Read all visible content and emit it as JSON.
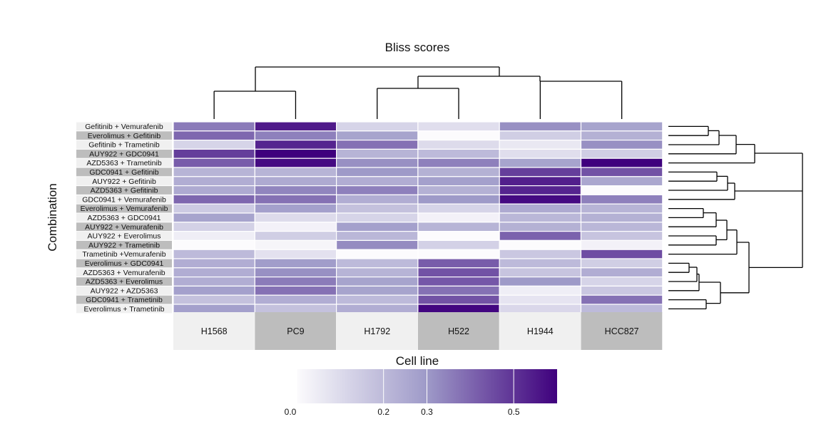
{
  "chart_data": {
    "type": "heatmap",
    "title": "Bliss scores",
    "xlabel": "Cell line",
    "ylabel": "Combination",
    "columns": [
      "H1568",
      "PC9",
      "H1792",
      "H522",
      "H1944",
      "HCC827"
    ],
    "rows": [
      "Gefitinib + Vemurafenib",
      "Everolimus + Gefitinib",
      "Gefitinib + Trametinib",
      "AUY922 + GDC0941",
      "AZD5363 + Trametinib",
      "GDC0941 + Gefitinib",
      "AUY922 + Gefitinib",
      "AZD5363 + Gefitinib",
      "GDC0941 + Vemurafenib",
      "Everolimus + Vemurafenib",
      "AZD5363 + GDC0941",
      "AUY922 + Vemurafenib",
      "AUY922 + Everolimus",
      "AUY922 + Trametinib",
      "Trametinib +Vemurafenib",
      "Everolimus + GDC0941",
      "AZD5363 + Vemurafenib",
      "AZD5363 + Everolimus",
      "AUY922 + AZD5363",
      "GDC0941 + Trametinib",
      "Everolimus + Trametinib"
    ],
    "values": [
      [
        0.36,
        0.55,
        0.12,
        0.09,
        0.32,
        0.27
      ],
      [
        0.4,
        0.35,
        0.27,
        0.0,
        0.14,
        0.23
      ],
      [
        0.12,
        0.53,
        0.38,
        0.1,
        0.06,
        0.32
      ],
      [
        0.48,
        0.8,
        0.22,
        0.2,
        0.09,
        0.14
      ],
      [
        0.42,
        0.58,
        0.32,
        0.35,
        0.27,
        0.68
      ],
      [
        0.22,
        0.22,
        0.3,
        0.23,
        0.48,
        0.44
      ],
      [
        0.24,
        0.25,
        0.24,
        0.28,
        0.54,
        0.26
      ],
      [
        0.25,
        0.34,
        0.35,
        0.23,
        0.53,
        0.0
      ],
      [
        0.4,
        0.38,
        0.24,
        0.3,
        0.58,
        0.35
      ],
      [
        0.15,
        0.28,
        0.18,
        0.12,
        0.25,
        0.22
      ],
      [
        0.27,
        0.1,
        0.12,
        0.03,
        0.21,
        0.23
      ],
      [
        0.13,
        0.03,
        0.28,
        0.22,
        0.23,
        0.21
      ],
      [
        0.04,
        0.14,
        0.21,
        0.0,
        0.41,
        0.17
      ],
      [
        0.0,
        0.02,
        0.33,
        0.13,
        0.0,
        0.03
      ],
      [
        0.2,
        0.08,
        0.0,
        0.0,
        0.16,
        0.45
      ],
      [
        0.24,
        0.29,
        0.2,
        0.42,
        0.2,
        0.14
      ],
      [
        0.24,
        0.32,
        0.22,
        0.44,
        0.17,
        0.24
      ],
      [
        0.24,
        0.36,
        0.27,
        0.43,
        0.3,
        0.12
      ],
      [
        0.28,
        0.38,
        0.27,
        0.38,
        0.04,
        0.16
      ],
      [
        0.18,
        0.24,
        0.2,
        0.44,
        0.07,
        0.38
      ],
      [
        0.28,
        0.18,
        0.24,
        0.59,
        0.11,
        0.2
      ]
    ],
    "color_scale": {
      "min": 0,
      "max": 0.6,
      "low": "#fcfbfd",
      "high": "#3f007d"
    },
    "legend_ticks": [
      0.0,
      0.2,
      0.3,
      0.5
    ],
    "legend_tick_labels": [
      "0.0",
      "0.2",
      "0.3",
      "0.5"
    ],
    "legend_placement": "bottom",
    "row_dendrogram": true,
    "column_dendrogram": true
  }
}
